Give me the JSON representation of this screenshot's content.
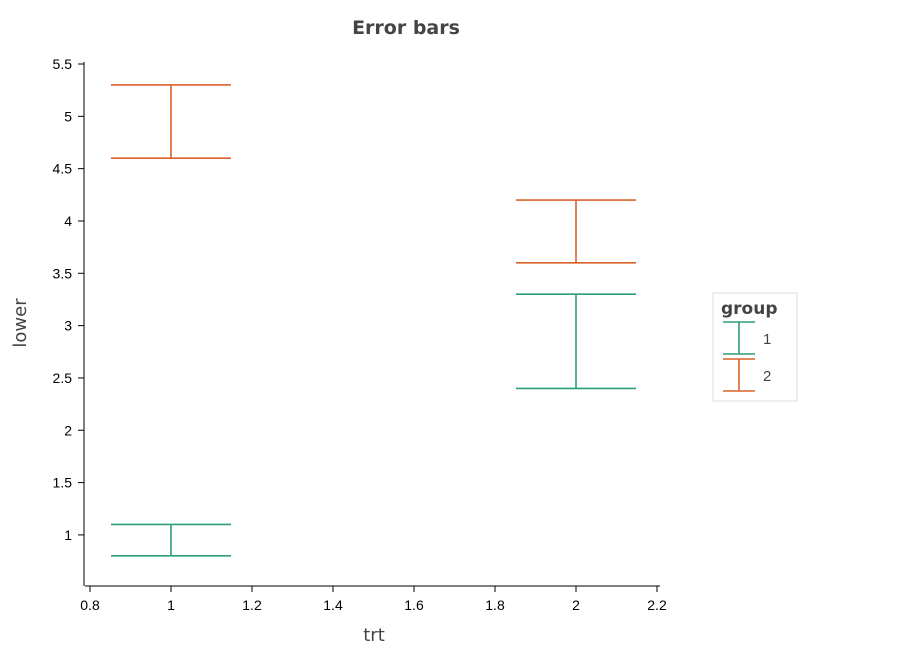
{
  "chart_data": {
    "type": "errorbar",
    "title": "Error bars",
    "xlabel": "trt",
    "ylabel": "lower",
    "xlim": [
      0.8,
      2.2
    ],
    "ylim": [
      0.55,
      5.5
    ],
    "x_ticks": [
      "0.8",
      "1",
      "1.2",
      "1.4",
      "1.6",
      "1.8",
      "2",
      "2.2"
    ],
    "y_ticks": [
      "1",
      "1.5",
      "2",
      "2.5",
      "3",
      "3.5",
      "4",
      "4.5",
      "5",
      "5.5"
    ],
    "grid": false,
    "legend": {
      "title": "group",
      "position": "right"
    },
    "series": [
      {
        "name": "1",
        "color": "#2a9d7c",
        "points": [
          {
            "x": 1,
            "lower": 0.8,
            "upper": 1.1
          },
          {
            "x": 2,
            "lower": 2.4,
            "upper": 3.3
          }
        ]
      },
      {
        "name": "2",
        "color": "#d9622b",
        "points": [
          {
            "x": 1,
            "lower": 4.6,
            "upper": 5.3
          },
          {
            "x": 2,
            "lower": 3.6,
            "upper": 4.2
          }
        ]
      }
    ]
  }
}
